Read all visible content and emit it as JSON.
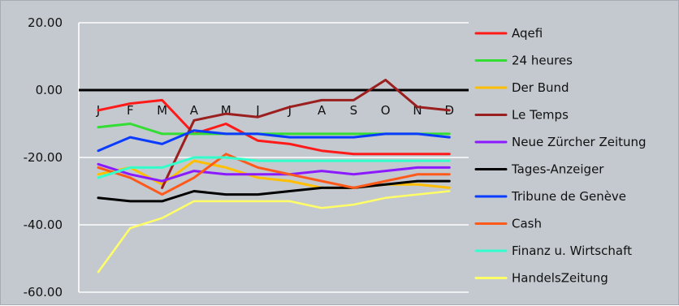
{
  "chart_data": {
    "type": "line",
    "categories": [
      "J",
      "F",
      "M",
      "A",
      "M",
      "J",
      "J",
      "A",
      "S",
      "O",
      "N",
      "D"
    ],
    "ylim": [
      -60,
      20
    ],
    "yticks": [
      20,
      0,
      -20,
      -40,
      -60
    ],
    "ytick_labels": [
      "20.00",
      "0.00",
      "-20.00",
      "-40.00",
      "-60.00"
    ],
    "grid": "horizontal",
    "legend_position": "right",
    "series": [
      {
        "name": "Aqefi",
        "color": "#ff1a1a",
        "values": [
          -6,
          -4,
          -3,
          -13,
          -10,
          -15,
          -16,
          -18,
          -19,
          -19,
          -19,
          -19
        ]
      },
      {
        "name": "24 heures",
        "color": "#33dd33",
        "values": [
          -11,
          -10,
          -13,
          -13,
          -13,
          -13,
          -13,
          -13,
          -13,
          -13,
          -13,
          -13
        ]
      },
      {
        "name": "Der Bund",
        "color": "#ffbf00",
        "values": [
          -25,
          -23,
          -28,
          -21,
          -23,
          -26,
          -27,
          -29,
          -29,
          -28,
          -28,
          -29
        ]
      },
      {
        "name": "Le Temps",
        "color": "#9b1f1f",
        "values": [
          null,
          null,
          -29,
          -9,
          -7,
          -8,
          -5,
          -3,
          -3,
          3,
          -5,
          -6
        ]
      },
      {
        "name": "Neue Zürcher Zeitung",
        "color": "#8b1aff",
        "values": [
          -22,
          -25,
          -27,
          -24,
          -25,
          -25,
          -25,
          -24,
          -25,
          -24,
          -23,
          -23
        ]
      },
      {
        "name": "Tages-Anzeiger",
        "color": "#000000",
        "values": [
          -32,
          -33,
          -33,
          -30,
          -31,
          -31,
          -30,
          -29,
          -29,
          -28,
          -27,
          -27
        ]
      },
      {
        "name": "Tribune de Genève",
        "color": "#0a3cff",
        "values": [
          -18,
          -14,
          -16,
          -12,
          -13,
          -13,
          -14,
          -14,
          -14,
          -13,
          -13,
          -14
        ]
      },
      {
        "name": "Cash",
        "color": "#ff5a1a",
        "values": [
          -23,
          -26,
          -31,
          -26,
          -19,
          -23,
          -25,
          -27,
          -29,
          -27,
          -25,
          -25
        ]
      },
      {
        "name": "Finanz u. Wirtschaft",
        "color": "#33ffcc",
        "values": [
          -26,
          -23,
          -23,
          -20,
          -20,
          -21,
          -21,
          -21,
          -21,
          -21,
          -21,
          -21
        ]
      },
      {
        "name": "HandelsZeitung",
        "color": "#ffff66",
        "values": [
          -54,
          -41,
          -38,
          -33,
          -33,
          -33,
          -33,
          -35,
          -34,
          -32,
          -31,
          -30
        ]
      }
    ]
  }
}
